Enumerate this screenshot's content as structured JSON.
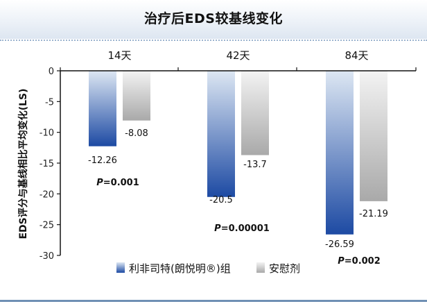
{
  "title": "治疗后EDS较基线变化",
  "chart_data": {
    "type": "bar",
    "title": "治疗后EDS较基线变化",
    "ylabel": "EDS评分与基线相比平均变化(LS)",
    "xlabel": "",
    "ylim": [
      -30,
      0
    ],
    "yticks": [
      0,
      -5,
      -10,
      -15,
      -20,
      -25,
      -30
    ],
    "categories": [
      "14天",
      "42天",
      "84天"
    ],
    "category_position": "top",
    "series": [
      {
        "name": "利非司特(朗悦明®)组",
        "values": [
          -12.26,
          -20.5,
          -26.59
        ],
        "labels": [
          "-12.26",
          "-20.5",
          "-26.59"
        ],
        "color_top": "#dde7f3",
        "color_bottom": "#1d4aa3"
      },
      {
        "name": "安慰剂",
        "values": [
          -8.08,
          -13.7,
          -21.19
        ],
        "labels": [
          "-8.08",
          "-13.7",
          "-21.19"
        ],
        "color_top": "#f3f3f3",
        "color_bottom": "#a9a9a9"
      }
    ],
    "p_values": [
      {
        "prefix": "P",
        "value": "=0.001"
      },
      {
        "prefix": "P",
        "value": "=0.00001"
      },
      {
        "prefix": "P",
        "value": "=0.002"
      }
    ],
    "legend_position": "bottom",
    "grid": false
  }
}
